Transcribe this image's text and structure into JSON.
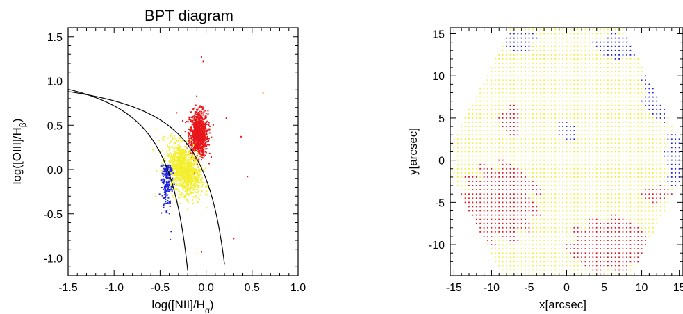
{
  "colors": {
    "red": "#e8161b",
    "yellow": "#f4ef2d",
    "blue": "#1f24e0",
    "axis": "#000000"
  },
  "chart_data": [
    {
      "type": "scatter",
      "title": "BPT diagram",
      "xlabel": "log([NII]/H_α)",
      "xlabel_main": "log([NII]/H",
      "xlabel_sub": "α",
      "xlabel_close": ")",
      "ylabel": "log([OIII]/H_β)",
      "ylabel_main": "log([OIII]/H",
      "ylabel_sub": "β",
      "ylabel_close": ")",
      "xlim": [
        -1.5,
        1.0
      ],
      "ylim": [
        -1.2,
        1.6
      ],
      "xticks": [
        -1.5,
        -1.0,
        -0.5,
        0.0,
        0.5,
        1.0
      ],
      "xtick_labels": [
        "-1.5",
        "-1.0",
        "-0.5",
        "0.0",
        "0.5",
        "1.0"
      ],
      "yticks": [
        -1.0,
        -0.5,
        0.0,
        0.5,
        1.0,
        1.5
      ],
      "ytick_labels": [
        "-1.0",
        "-0.5",
        "0.0",
        "0.5",
        "1.0",
        "1.5"
      ],
      "grid": false,
      "curves": [
        {
          "formula": "0.61/(x-0.05)+1.3",
          "x_range": [
            -1.5,
            -0.2
          ]
        },
        {
          "formula": "0.61/(x-0.47)+1.19",
          "x_range": [
            -1.5,
            0.2
          ]
        }
      ],
      "series": [
        {
          "color": "red",
          "center": [
            -0.08,
            0.4
          ],
          "spread": [
            0.05,
            0.13
          ],
          "count": 900,
          "outliers": [
            [
              -0.05,
              1.27
            ],
            [
              -0.03,
              1.22
            ],
            [
              0.62,
              0.86
            ],
            [
              0.38,
              0.37
            ],
            [
              0.45,
              -0.08
            ],
            [
              0.3,
              -0.78
            ],
            [
              -0.32,
              0.64
            ],
            [
              -0.05,
              -0.93
            ],
            [
              0.22,
              0.58
            ]
          ]
        },
        {
          "color": "yellow",
          "center": [
            -0.24,
            0.0
          ],
          "spread": [
            0.09,
            0.13
          ],
          "count": 1100,
          "outliers": [
            [
              -0.1,
              -0.95
            ],
            [
              0.62,
              0.86
            ],
            [
              -0.55,
              -0.3
            ],
            [
              -0.2,
              -0.45
            ]
          ]
        },
        {
          "color": "blue",
          "center": [
            -0.44,
            -0.15
          ],
          "spread": [
            0.025,
            0.17
          ],
          "count": 200,
          "outliers": [
            [
              -0.38,
              -0.7
            ]
          ]
        }
      ]
    },
    {
      "type": "scatter",
      "title": "",
      "xlabel": "x[arcsec]",
      "ylabel": "y[arcsec]",
      "xlim": [
        -15.5,
        15.5
      ],
      "ylim": [
        -13.7,
        15.7
      ],
      "xticks": [
        -15,
        -10,
        -5,
        0,
        5,
        10,
        15
      ],
      "xtick_labels": [
        "-15",
        "-10",
        "-5",
        "0",
        "5",
        "10",
        "15"
      ],
      "yticks": [
        -10,
        -5,
        0,
        5,
        10,
        15
      ],
      "ytick_labels": [
        "-10",
        "-5",
        "0",
        "5",
        "10",
        "15"
      ],
      "grid": false,
      "spaxel_step": 0.5,
      "field_shape": "hexagon",
      "field_radius": 15.5,
      "default_color": "yellow",
      "regions": [
        {
          "color": "red",
          "shape": "ellipse",
          "center": [
            -9,
            -5
          ],
          "radii": [
            5.5,
            5
          ]
        },
        {
          "color": "red",
          "shape": "ellipse",
          "center": [
            6,
            -10
          ],
          "radii": [
            6,
            3.5
          ]
        },
        {
          "color": "red",
          "shape": "ellipse",
          "center": [
            -7.5,
            4.5
          ],
          "radii": [
            1.5,
            2
          ]
        },
        {
          "color": "red",
          "shape": "ellipse",
          "center": [
            12,
            -4
          ],
          "radii": [
            2,
            1
          ]
        },
        {
          "color": "blue",
          "shape": "ellipse",
          "center": [
            15.5,
            0.5
          ],
          "radii": [
            2.5,
            4.5
          ]
        },
        {
          "color": "blue",
          "shape": "ellipse",
          "center": [
            12.5,
            8.5
          ],
          "radii": [
            2.5,
            4
          ]
        },
        {
          "color": "blue",
          "shape": "ellipse",
          "center": [
            7,
            13.5
          ],
          "radii": [
            3.5,
            1.5
          ]
        },
        {
          "color": "blue",
          "shape": "ellipse",
          "center": [
            -6.5,
            14
          ],
          "radii": [
            2.5,
            1.5
          ]
        },
        {
          "color": "blue",
          "shape": "ellipse",
          "center": [
            0,
            3.5
          ],
          "radii": [
            1.6,
            1.3
          ]
        }
      ]
    }
  ]
}
